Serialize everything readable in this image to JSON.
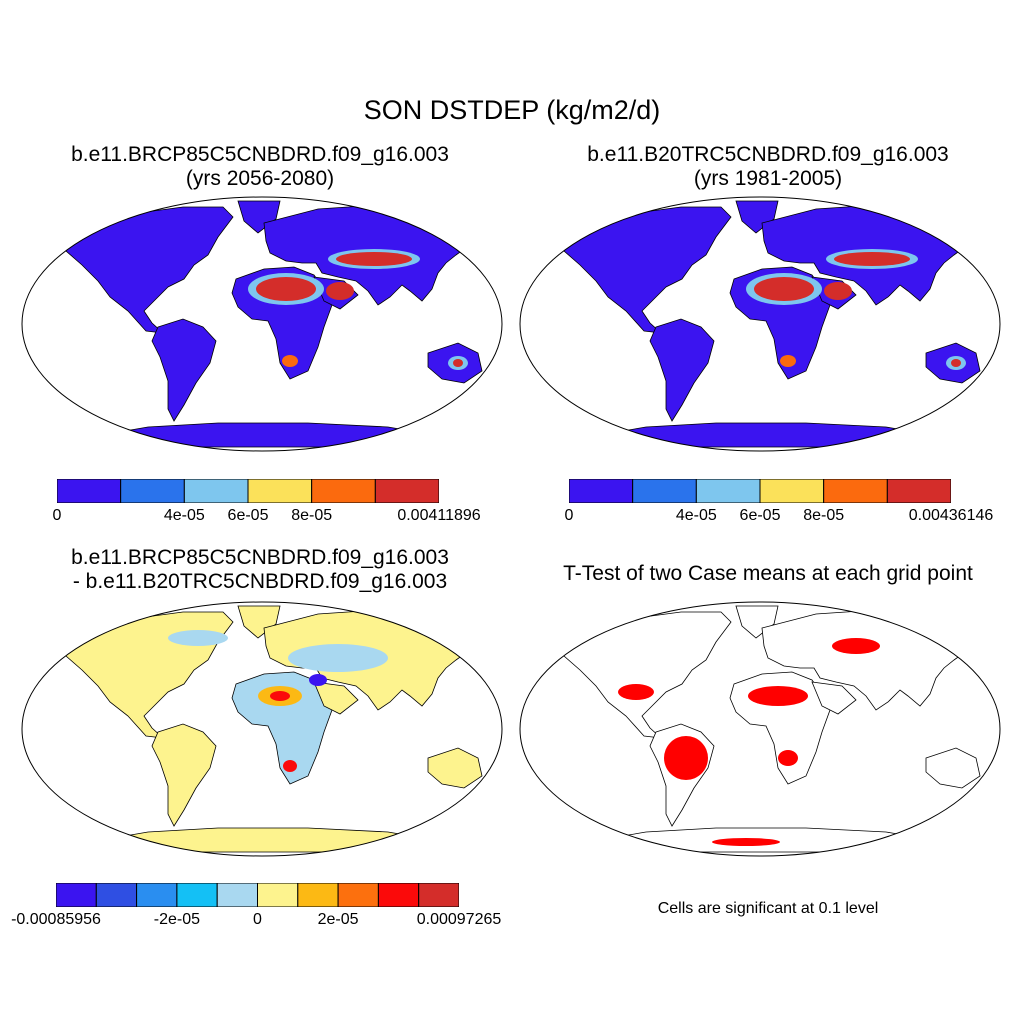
{
  "title": "SON DSTDEP (kg/m2/d)",
  "panels": [
    {
      "id": "p1",
      "title_line1": "b.e11.BRCP85C5CNBDRD.f09_g16.003",
      "title_line2": "(yrs 2056-2080)",
      "colorbar": {
        "colors": [
          "#3b14f0",
          "#2a73ec",
          "#7ec6ee",
          "#fbe15a",
          "#fb6a0e",
          "#d42d2a"
        ],
        "tick_labels": [
          "0",
          "4e-05",
          "6e-05",
          "8e-05",
          "0.00411896"
        ],
        "tick_boundaries": [
          0,
          2,
          3,
          4,
          6
        ]
      }
    },
    {
      "id": "p2",
      "title_line1": "b.e11.B20TRC5CNBDRD.f09_g16.003",
      "title_line2": "(yrs 1981-2005)",
      "colorbar": {
        "colors": [
          "#3b14f0",
          "#2a73ec",
          "#7ec6ee",
          "#fbe15a",
          "#fb6a0e",
          "#d42d2a"
        ],
        "tick_labels": [
          "0",
          "4e-05",
          "6e-05",
          "8e-05",
          "0.00436146"
        ],
        "tick_boundaries": [
          0,
          2,
          3,
          4,
          6
        ]
      }
    },
    {
      "id": "p3",
      "title_line1": "b.e11.BRCP85C5CNBDRD.f09_g16.003",
      "title_line2": "- b.e11.B20TRC5CNBDRD.f09_g16.003",
      "colorbar": {
        "colors": [
          "#3b14f0",
          "#2f4fe3",
          "#2a8ef0",
          "#14c0f5",
          "#a9d8f0",
          "#fdf38e",
          "#fcb914",
          "#fc700e",
          "#fb0a0a",
          "#d42d2a"
        ],
        "tick_labels": [
          "-0.00085956",
          "-2e-05",
          "0",
          "2e-05",
          "0.00097265"
        ],
        "tick_boundaries": [
          0,
          3,
          5,
          7,
          10
        ]
      }
    },
    {
      "id": "p4",
      "title_line1": "T-Test of two Case means at each grid point",
      "note": "Cells are significant at 0.1 level",
      "significance_color": "#ff0000"
    }
  ]
}
